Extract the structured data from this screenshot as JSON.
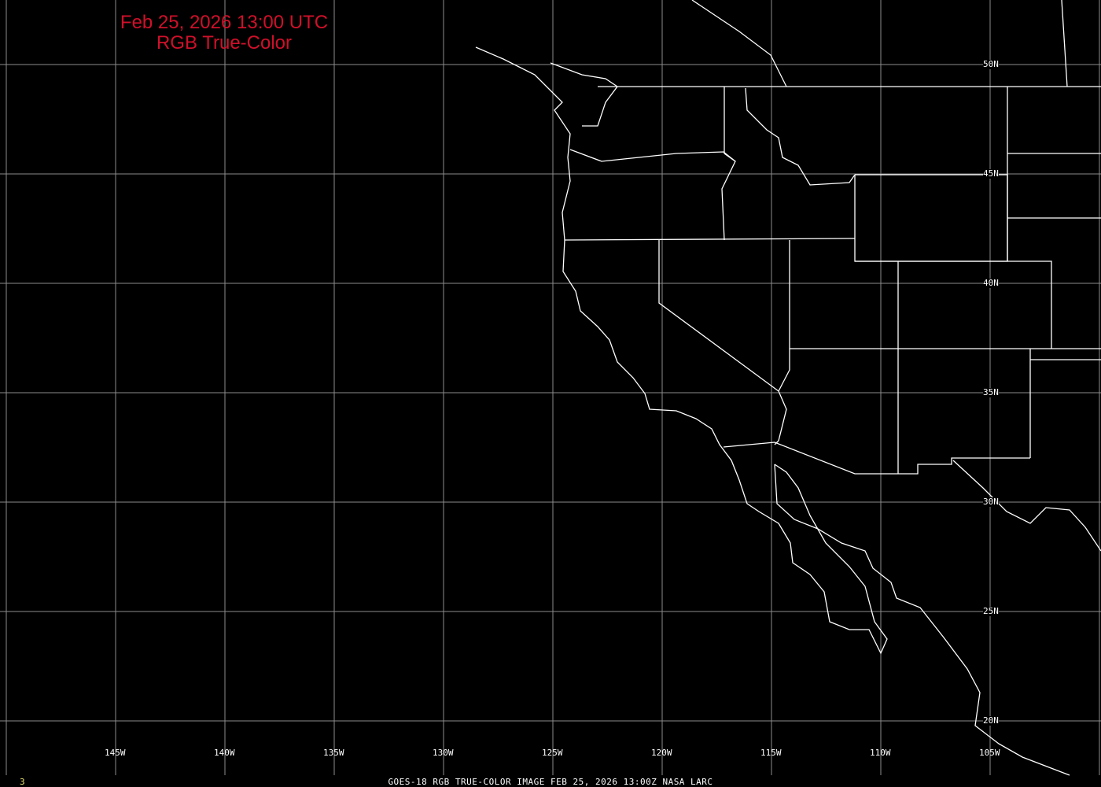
{
  "title": {
    "line1": "Feb 25, 2026 13:00 UTC",
    "line2": "RGB True-Color"
  },
  "footer": {
    "caption": "GOES-18 RGB TRUE-COLOR IMAGE   FEB 25, 2026 13:00Z    NASA LARC",
    "frame_number": "3"
  },
  "grid": {
    "longitude_labels": [
      "145W",
      "140W",
      "135W",
      "130W",
      "125W",
      "120W",
      "115W",
      "110W",
      "105W"
    ],
    "latitude_labels": [
      "50N",
      "45N",
      "40N",
      "35N",
      "30N",
      "25N",
      "20N"
    ]
  },
  "colors": {
    "title": "#d0102a",
    "grid": "#8c8c8c",
    "boundaries": "#ffffff",
    "background": "#000000",
    "frame_number": "#e8e070"
  }
}
